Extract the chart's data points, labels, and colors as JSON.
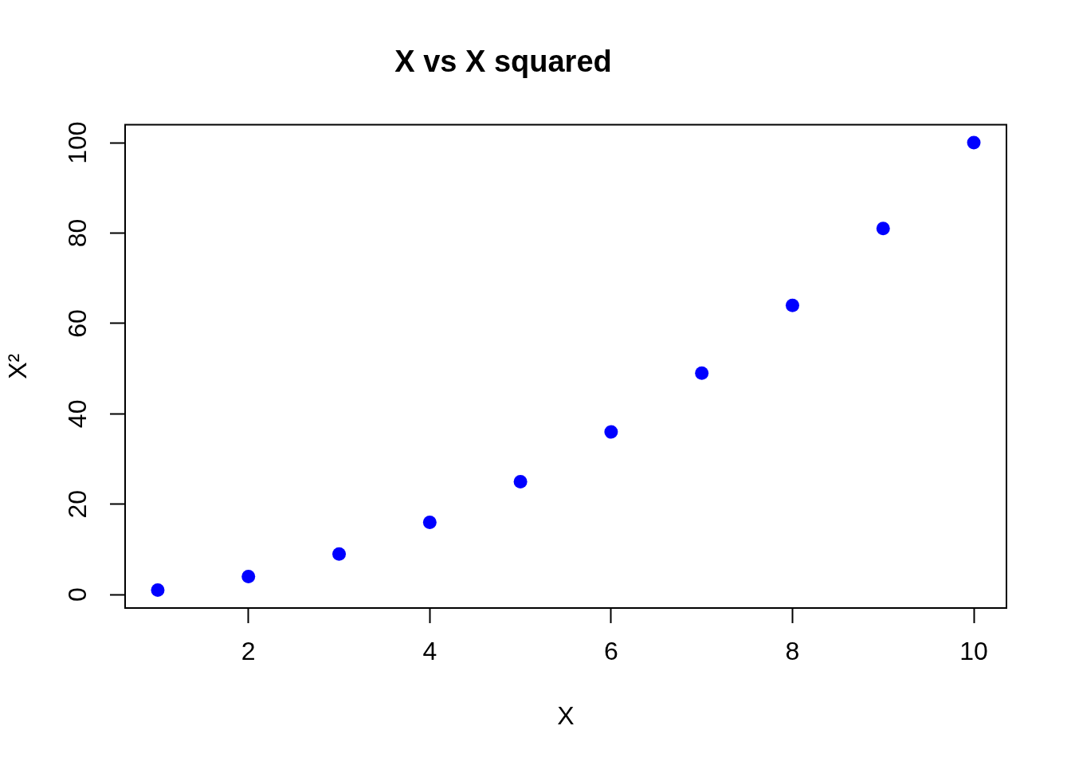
{
  "chart_data": {
    "type": "scatter",
    "title": "X vs X squared",
    "xlabel": "X",
    "ylabel": "X²",
    "x": [
      1,
      2,
      3,
      4,
      5,
      6,
      7,
      8,
      9,
      10
    ],
    "values": [
      1,
      4,
      9,
      16,
      25,
      36,
      49,
      64,
      81,
      100
    ],
    "color": "#0000ff",
    "marker": "circle",
    "xlim": [
      0.64,
      10.36
    ],
    "xticks": [
      2,
      4,
      6,
      8,
      10
    ],
    "ylim": [
      -2.96,
      103.96
    ],
    "yticks": [
      0,
      20,
      40,
      60,
      80,
      100
    ]
  }
}
